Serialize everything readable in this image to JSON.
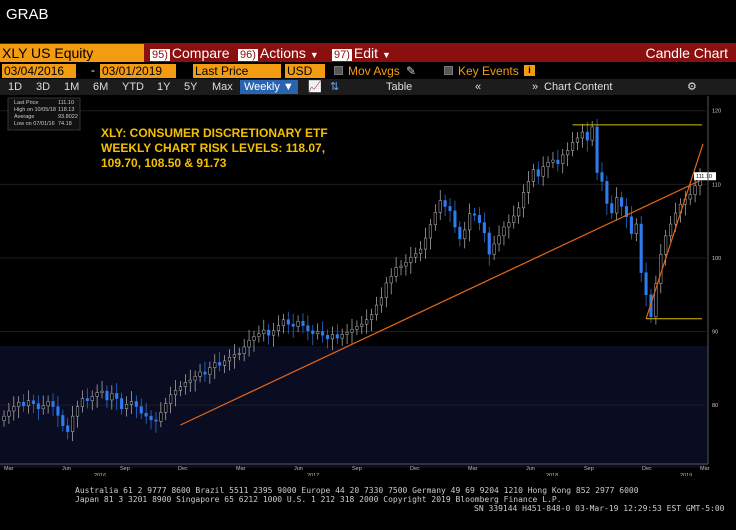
{
  "window": {
    "title": "GRAB"
  },
  "toolbar": {
    "ticker": "XLY US Equity",
    "compare_num": "95)",
    "compare_label": "Compare",
    "actions_num": "96)",
    "actions_label": "Actions",
    "edit_num": "97)",
    "edit_label": "Edit",
    "chart_title": "Candle Chart"
  },
  "params": {
    "start_date": "03/04/2016",
    "end_date": "03/01/2019",
    "field": "Last Price",
    "currency": "USD",
    "mov_avgs": "Mov Avgs",
    "key_events": "Key Events",
    "info_icon": "i"
  },
  "timeframes": [
    "1D",
    "3D",
    "1M",
    "6M",
    "YTD",
    "1Y",
    "5Y",
    "Max"
  ],
  "period": "Weekly ▼",
  "table_label": "Table",
  "chart_content_label": "Chart Content",
  "legend": {
    "last_price_label": "Last Price",
    "last_price_val": "111.10",
    "high_label": "High on 10/05/18",
    "high_val": "118.13",
    "avg_label": "Average",
    "avg_val": "93.8022",
    "low_label": "Low on 07/01/16",
    "low_val": "74.18"
  },
  "annotation": {
    "line1": "XLY: CONSUMER DISCRETIONARY ETF",
    "line2": "WEEKLY CHART RISK LEVELS: 118.07,",
    "line3": "109.70, 108.50 & 91.73"
  },
  "chart_data": {
    "type": "candlestick",
    "ticker": "XLY US Equity",
    "interval": "Weekly",
    "y_ticks": [
      80,
      90,
      100,
      110,
      120
    ],
    "y_range": [
      72,
      122
    ],
    "x_month_labels": [
      "Mar",
      "Jun",
      "Sep",
      "Dec",
      "Mar",
      "Jun",
      "Sep",
      "Dec",
      "Mar",
      "Jun",
      "Sep",
      "Dec",
      "Mar"
    ],
    "x_year_labels": [
      "2016",
      "2017",
      "2018",
      "2019"
    ],
    "last_price_tag": "111.10",
    "series_close": [
      78.5,
      79.2,
      79.8,
      80.4,
      79.9,
      80.6,
      80.2,
      79.5,
      79.9,
      80.5,
      79.8,
      78.6,
      77.2,
      76.4,
      78.5,
      79.8,
      80.9,
      80.6,
      81.2,
      81.7,
      81.9,
      80.7,
      81.6,
      80.9,
      79.5,
      80.1,
      80.5,
      79.8,
      78.9,
      78.5,
      78.0,
      77.8,
      79.0,
      80.2,
      81.4,
      82.0,
      82.5,
      83.1,
      83.4,
      83.9,
      84.5,
      84.2,
      85.1,
      85.8,
      85.4,
      86.0,
      86.5,
      86.9,
      87.0,
      87.9,
      88.8,
      89.3,
      89.7,
      90.2,
      89.5,
      90.1,
      90.8,
      91.6,
      91.0,
      90.7,
      91.4,
      90.8,
      90.1,
      89.7,
      90.0,
      89.5,
      89.0,
      89.6,
      89.1,
      89.6,
      89.9,
      90.3,
      90.7,
      91.0,
      91.6,
      92.3,
      93.6,
      94.6,
      96.6,
      97.5,
      98.7,
      98.9,
      99.4,
      100.1,
      100.6,
      101.2,
      102.7,
      104.5,
      106.2,
      107.8,
      107.0,
      106.4,
      104.2,
      102.6,
      103.8,
      106.0,
      105.8,
      104.8,
      103.4,
      100.5,
      101.9,
      103.0,
      104.2,
      104.8,
      105.7,
      106.8,
      108.9,
      110.4,
      112.0,
      111.1,
      112.4,
      113.0,
      113.3,
      112.8,
      114.0,
      114.6,
      115.7,
      116.3,
      117.1,
      116.0,
      117.8,
      111.6,
      110.4,
      107.4,
      106.1,
      108.2,
      107.0,
      105.6,
      103.3,
      104.6,
      98.0,
      95.0,
      92.0,
      96.5,
      100.5,
      103.0,
      104.6,
      106.1,
      107.3,
      108.0,
      108.6,
      109.8,
      111.1
    ],
    "support_line": {
      "from": {
        "label": "Nov 2016",
        "value": 77.3
      },
      "to": {
        "label": "Mar 2019",
        "value": 110.5
      }
    },
    "channel_top": 118.07,
    "channel_bottom": 91.73
  },
  "footer": {
    "line1": "Australia 61 2 9777 8600 Brazil 5511 2395 9000 Europe 44 20 7330 7500 Germany 49 69 9204 1210 Hong Kong 852 2977 6000",
    "line2": "Japan 81 3 3201 8900          Singapore 65 6212 1000          U.S. 1 212 318 2000          Copyright 2019 Bloomberg Finance L.P.",
    "line3": "SN 339144 H451-848-0 03-Mar-19 12:29:53 EST  GMT-5:00"
  }
}
